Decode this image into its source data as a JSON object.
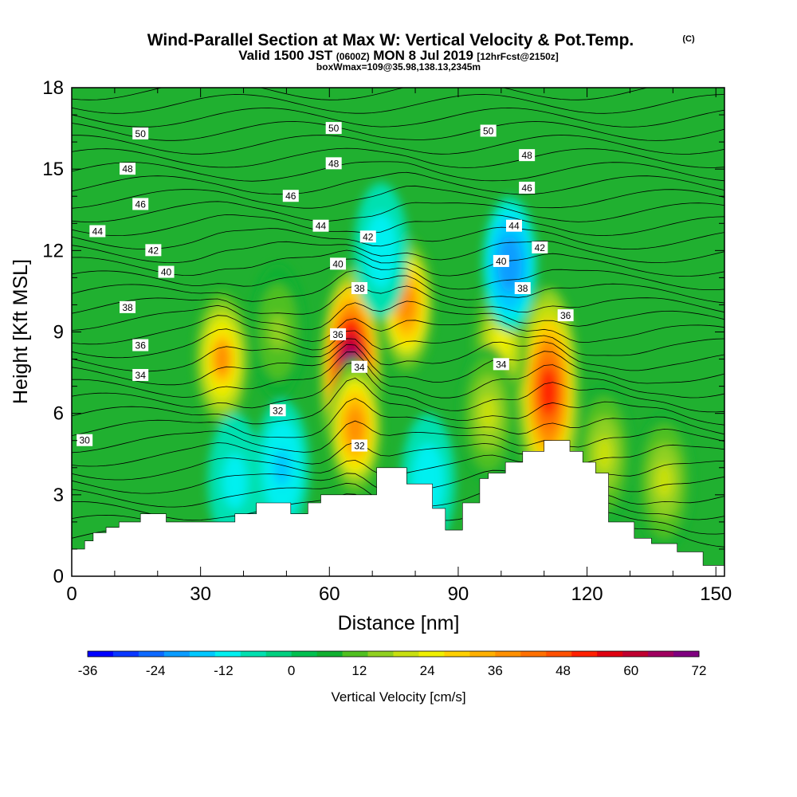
{
  "chart_data": {
    "type": "heatmap",
    "title": "Wind-Parallel Section at Max W: Vertical Velocity & Pot.Temp.",
    "title_mark": "(C)",
    "subtitle_parts": [
      "Valid 1500 JST",
      "(0600Z)",
      "MON 8 Jul 2019",
      "[12hrFcst@2150z]"
    ],
    "subtitle2": "boxWmax=109@35.98,138.13,2345m",
    "xlabel": "Distance [nm]",
    "ylabel": "Height [Kft MSL]",
    "xlim": [
      0,
      152
    ],
    "ylim": [
      0,
      18
    ],
    "x_ticks": [
      0,
      30,
      60,
      90,
      120,
      150
    ],
    "y_ticks": [
      0,
      3,
      6,
      9,
      12,
      15,
      18
    ],
    "colorbar": {
      "label": "Vertical Velocity [cm/s]",
      "min": -36,
      "max": 72,
      "tick_labels": [
        "-36",
        "-24",
        "-12",
        "0",
        "12",
        "24",
        "36",
        "48",
        "60",
        "72"
      ],
      "colors": [
        "#0000ff",
        "#0a37ff",
        "#0d6aff",
        "#0a9cff",
        "#00c8ff",
        "#00f0f0",
        "#00e0b0",
        "#00d080",
        "#00c050",
        "#10b030",
        "#50c020",
        "#90d020",
        "#c8e010",
        "#f0f000",
        "#ffd000",
        "#ffb000",
        "#ff9000",
        "#ff7000",
        "#ff5000",
        "#ff2000",
        "#e00010",
        "#c00030",
        "#a00060",
        "#800080"
      ]
    },
    "vertical_velocity_cores": [
      {
        "x": 65,
        "y": 7.5,
        "peak": 72
      },
      {
        "x": 66,
        "y": 5.5,
        "peak": 40
      },
      {
        "x": 78,
        "y": 10.0,
        "peak": 40
      },
      {
        "x": 35,
        "y": 8.0,
        "peak": 36
      },
      {
        "x": 111,
        "y": 6.8,
        "peak": 52
      },
      {
        "x": 100,
        "y": 8.5,
        "peak": 24
      },
      {
        "x": 97,
        "y": 6.0,
        "peak": 20
      },
      {
        "x": 124,
        "y": 4.5,
        "peak": 20
      },
      {
        "x": 138,
        "y": 3.5,
        "peak": 18
      },
      {
        "x": 48,
        "y": 9.0,
        "peak": 14
      },
      {
        "x": 102,
        "y": 11.5,
        "peak": -22
      },
      {
        "x": 49,
        "y": 4.0,
        "peak": -14
      },
      {
        "x": 72,
        "y": 12.0,
        "peak": -12
      },
      {
        "x": 83,
        "y": 3.5,
        "peak": -12
      },
      {
        "x": 38,
        "y": 3.5,
        "peak": -10
      }
    ],
    "potential_temperature_labels": [
      {
        "text": "50",
        "x": 16,
        "y": 16.3
      },
      {
        "text": "50",
        "x": 61,
        "y": 16.5
      },
      {
        "text": "50",
        "x": 97,
        "y": 16.4
      },
      {
        "text": "48",
        "x": 13,
        "y": 15.0
      },
      {
        "text": "48",
        "x": 61,
        "y": 15.2
      },
      {
        "text": "48",
        "x": 106,
        "y": 15.5
      },
      {
        "text": "46",
        "x": 16,
        "y": 13.7
      },
      {
        "text": "46",
        "x": 51,
        "y": 14.0
      },
      {
        "text": "46",
        "x": 106,
        "y": 14.3
      },
      {
        "text": "44",
        "x": 6,
        "y": 12.7
      },
      {
        "text": "44",
        "x": 58,
        "y": 12.9
      },
      {
        "text": "44",
        "x": 103,
        "y": 12.9
      },
      {
        "text": "42",
        "x": 19,
        "y": 12.0
      },
      {
        "text": "42",
        "x": 69,
        "y": 12.5
      },
      {
        "text": "42",
        "x": 109,
        "y": 12.1
      },
      {
        "text": "40",
        "x": 22,
        "y": 11.2
      },
      {
        "text": "40",
        "x": 62,
        "y": 11.5
      },
      {
        "text": "40",
        "x": 100,
        "y": 11.6
      },
      {
        "text": "38",
        "x": 13,
        "y": 9.9
      },
      {
        "text": "38",
        "x": 67,
        "y": 10.6
      },
      {
        "text": "38",
        "x": 105,
        "y": 10.6
      },
      {
        "text": "36",
        "x": 16,
        "y": 8.5
      },
      {
        "text": "36",
        "x": 62,
        "y": 8.9
      },
      {
        "text": "36",
        "x": 115,
        "y": 9.6
      },
      {
        "text": "34",
        "x": 16,
        "y": 7.4
      },
      {
        "text": "34",
        "x": 67,
        "y": 7.7
      },
      {
        "text": "34",
        "x": 100,
        "y": 7.8
      },
      {
        "text": "32",
        "x": 48,
        "y": 6.1
      },
      {
        "text": "32",
        "x": 67,
        "y": 4.8
      },
      {
        "text": "30",
        "x": 3,
        "y": 5.0
      }
    ],
    "terrain": {
      "x": [
        0,
        3,
        5,
        8,
        11,
        16,
        22,
        27,
        30,
        35,
        38,
        43,
        48,
        51,
        55,
        58,
        63,
        67,
        71,
        74,
        78,
        81,
        84,
        87,
        91,
        95,
        97,
        101,
        105,
        107,
        110,
        113,
        116,
        119,
        122,
        125,
        131,
        135,
        141,
        147,
        152
      ],
      "y": [
        1.0,
        1.3,
        1.6,
        1.8,
        2.0,
        2.3,
        2.0,
        2.0,
        2.0,
        2.0,
        2.3,
        2.7,
        2.7,
        2.3,
        2.7,
        3.0,
        3.0,
        3.0,
        4.0,
        4.0,
        3.4,
        3.4,
        2.5,
        1.7,
        2.7,
        3.6,
        3.8,
        4.2,
        4.6,
        4.6,
        5.0,
        5.0,
        4.6,
        4.2,
        3.8,
        2.0,
        1.4,
        1.2,
        0.9,
        0.4,
        0.4
      ]
    }
  }
}
